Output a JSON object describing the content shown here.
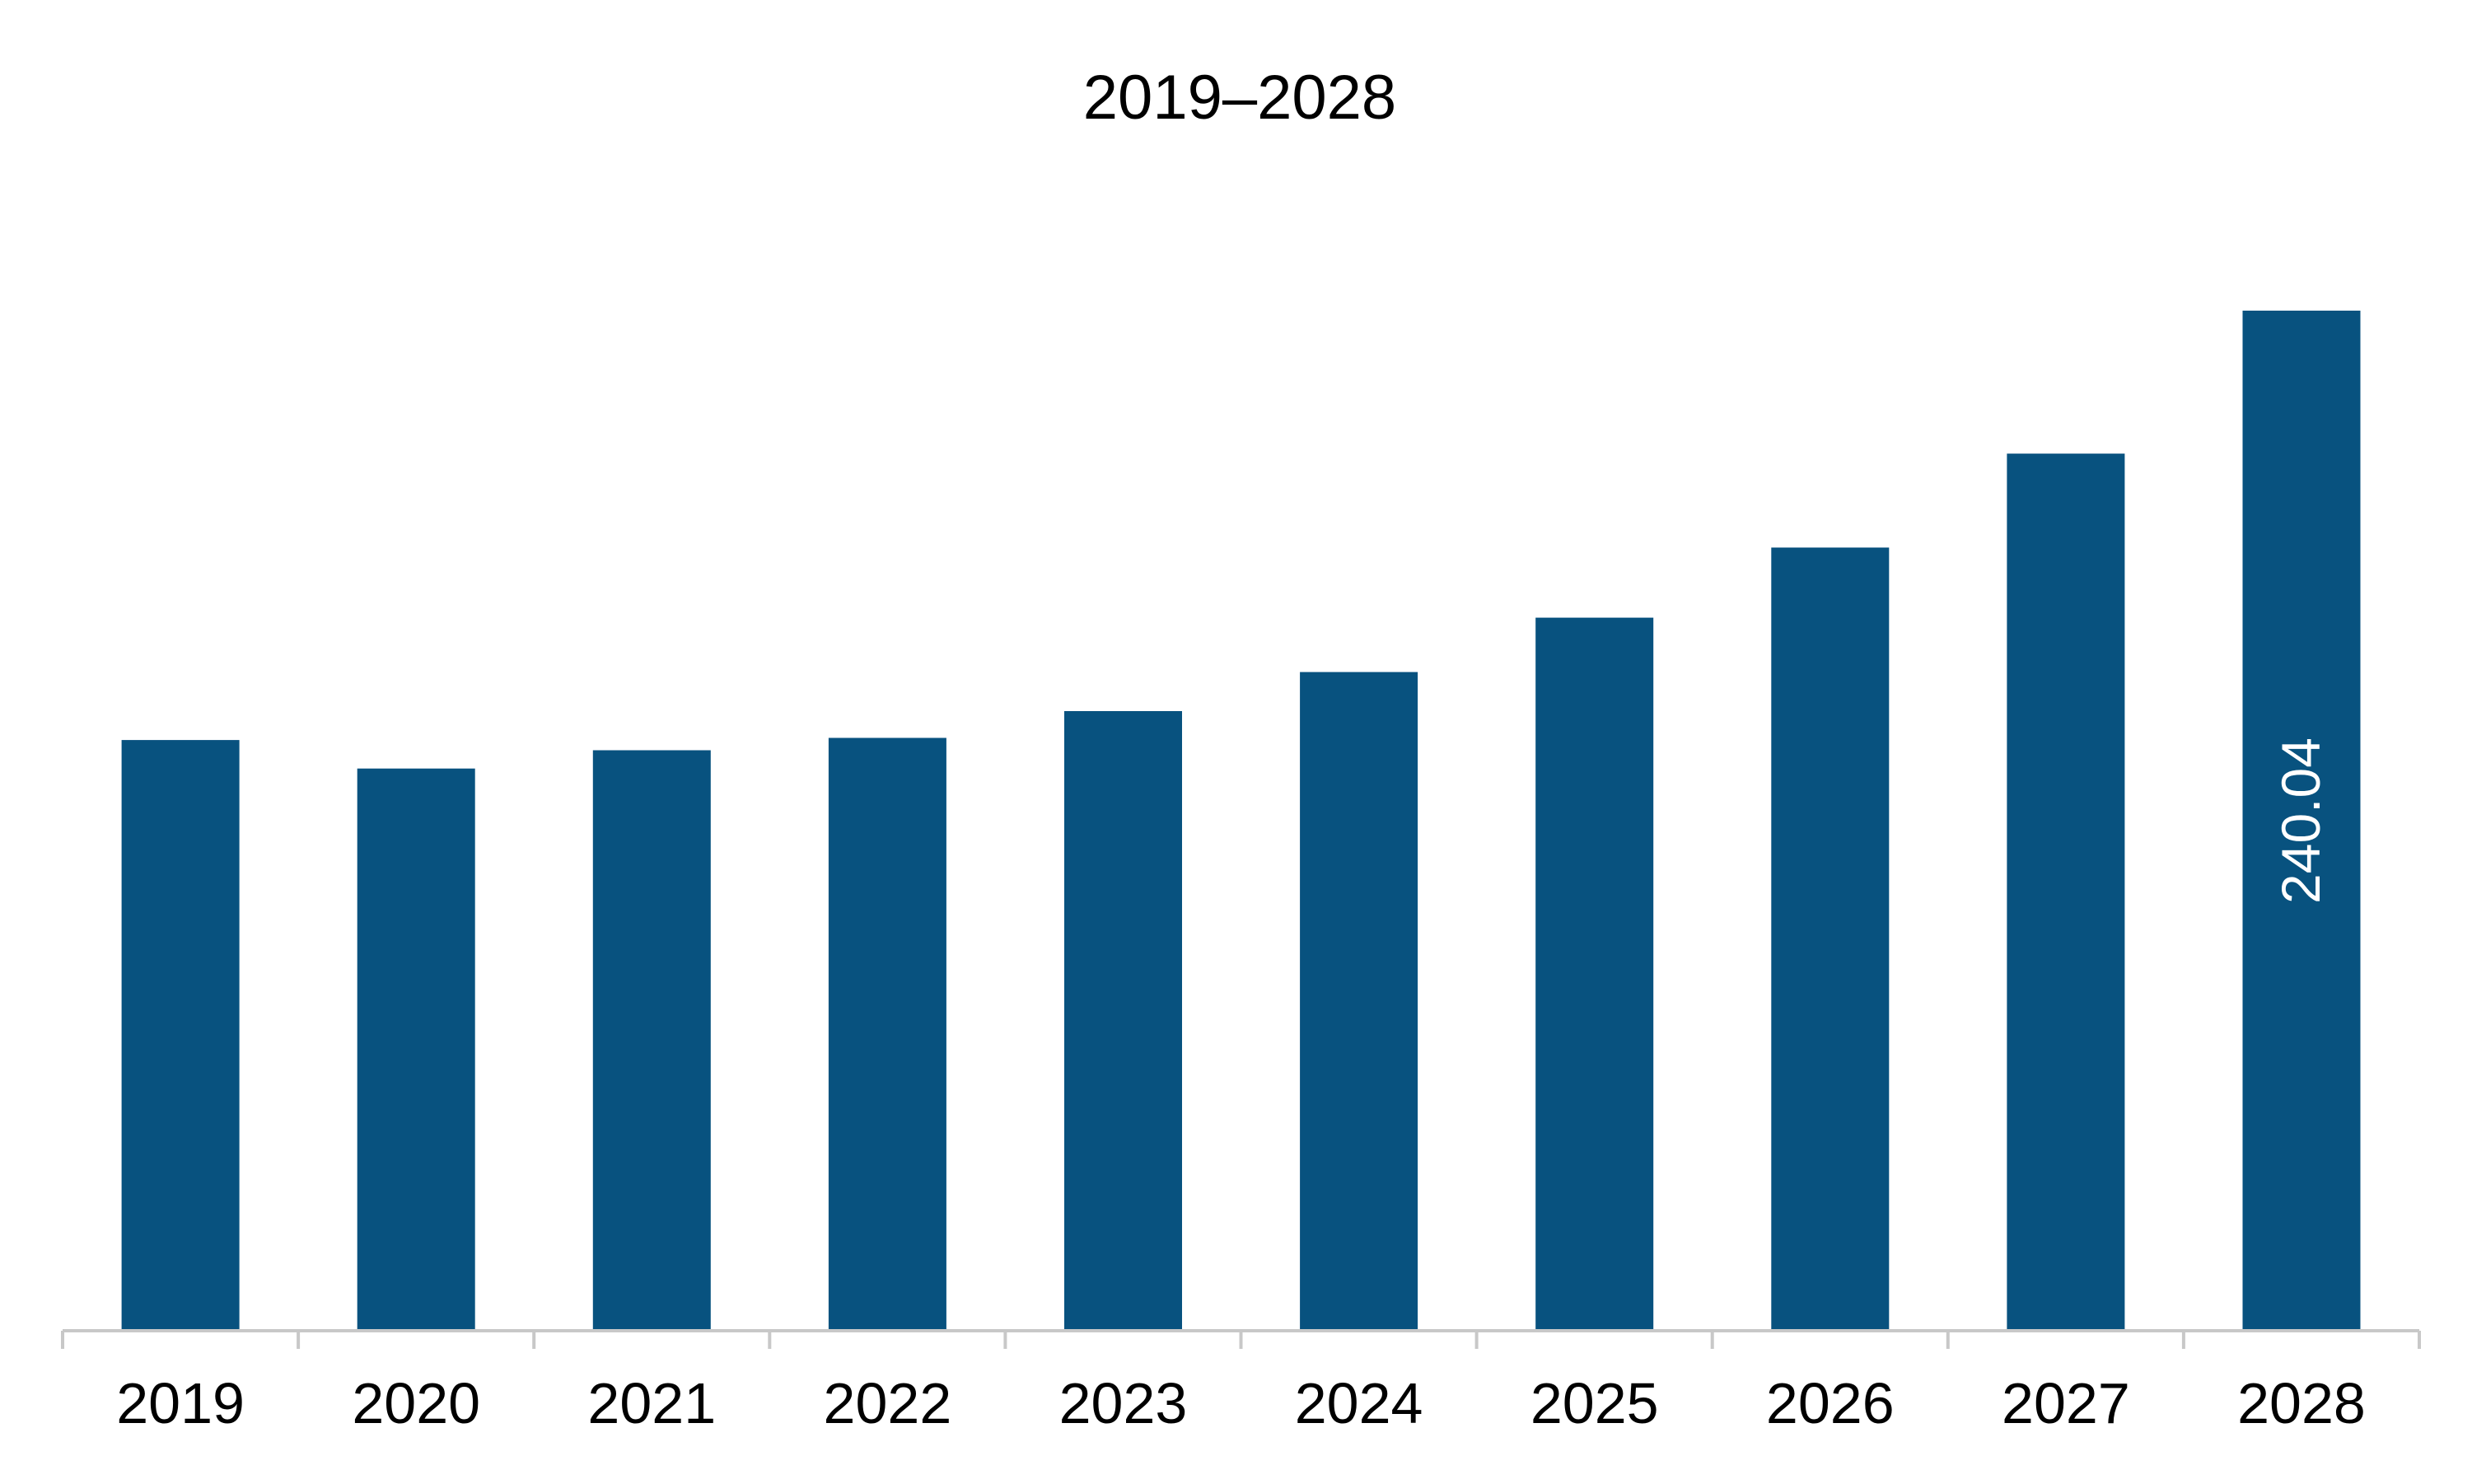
{
  "chart_data": {
    "type": "bar",
    "title": "2019–2028",
    "xlabel": "",
    "ylabel": "",
    "categories": [
      "2019",
      "2020",
      "2021",
      "2022",
      "2023",
      "2024",
      "2025",
      "2026",
      "2027",
      "2028"
    ],
    "values": [
      139.0,
      132.3,
      136.6,
      139.5,
      145.8,
      155.0,
      167.8,
      184.3,
      206.4,
      240.04
    ],
    "data_labels": [
      "",
      "",
      "",
      "",
      "",
      "",
      "",
      "",
      "",
      "240.04"
    ],
    "ylim": [
      0,
      240.04
    ],
    "grid": false,
    "legend": "none",
    "colors": {
      "bar": "#08527F",
      "axis": "#C8C8C8",
      "text": "#000000",
      "data_label": "#FFFFFF"
    }
  }
}
